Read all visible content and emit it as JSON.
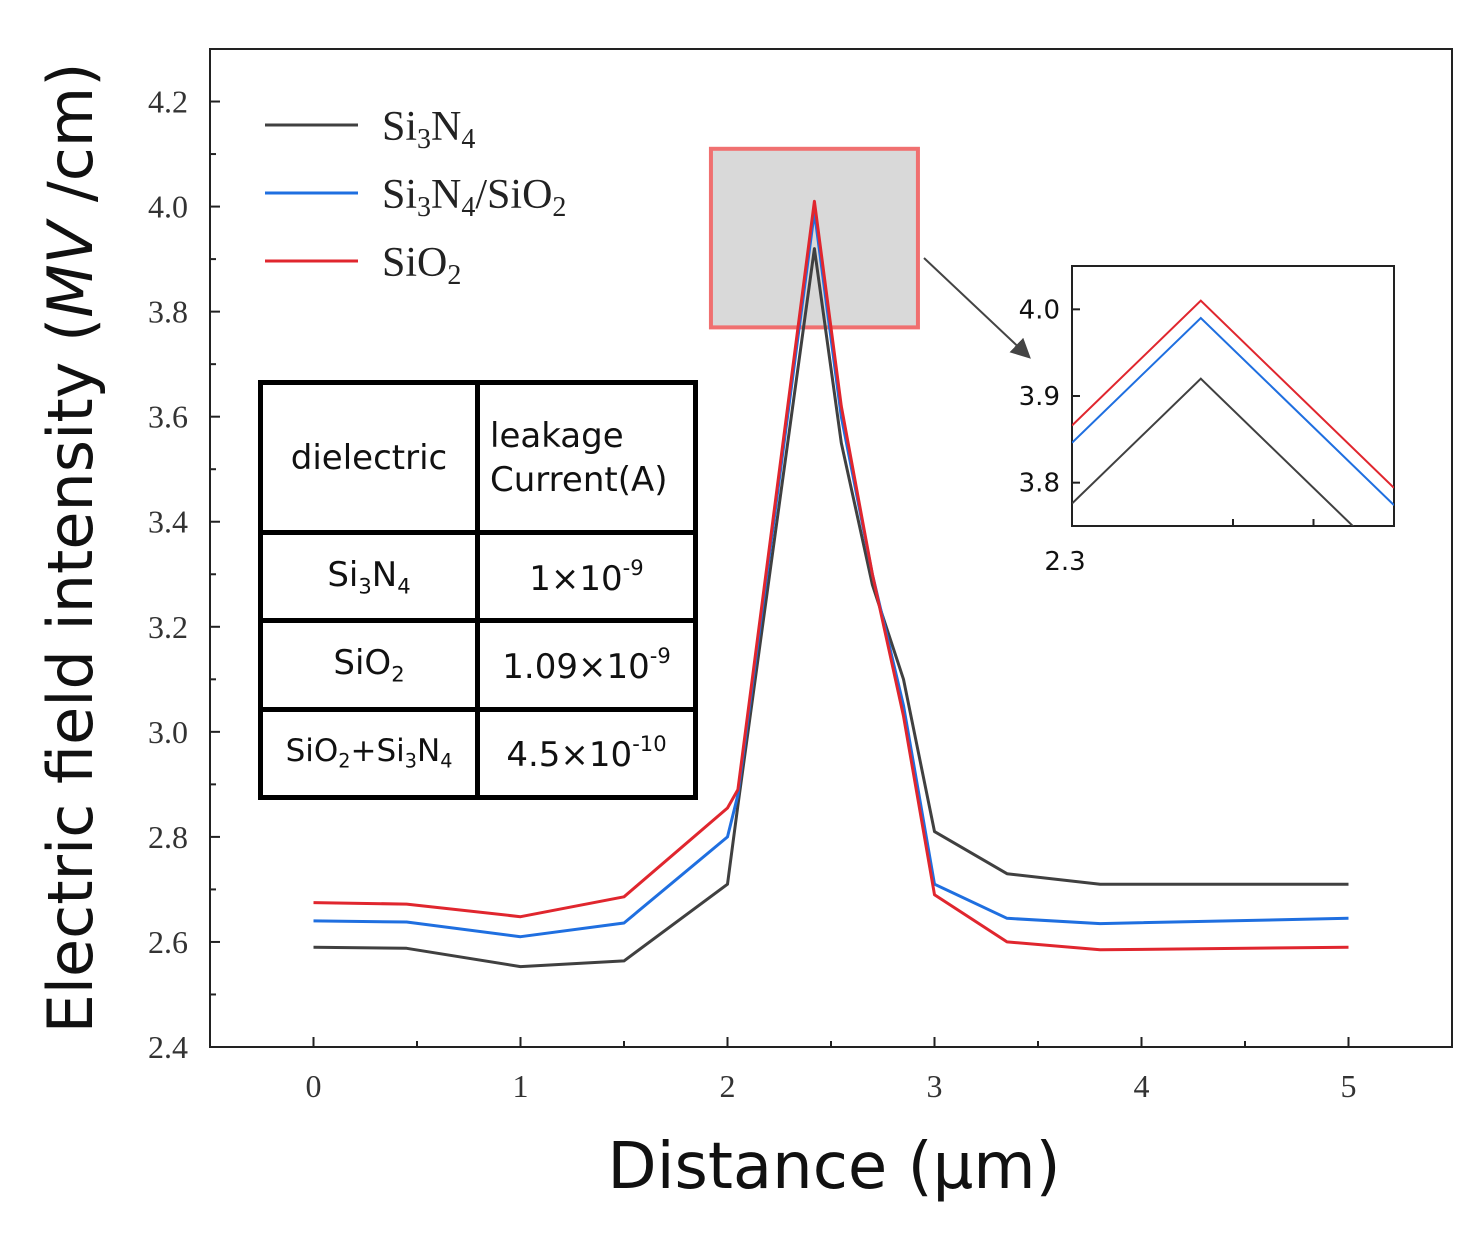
{
  "chart_data": {
    "type": "line",
    "title": "",
    "xlabel": "Distance (μm)",
    "ylabel_prefix": "Electric field intensity (",
    "ylabel_italic": "MV",
    "ylabel_suffix": " /cm)",
    "xlim": [
      -0.5,
      5.5
    ],
    "ylim": [
      2.4,
      4.3
    ],
    "xticks": [
      0,
      1,
      2,
      3,
      4,
      5
    ],
    "yticks": [
      2.4,
      2.6,
      2.8,
      3.0,
      3.2,
      3.4,
      3.6,
      3.8,
      4.0,
      4.2
    ],
    "ytick_labels": [
      "2.4",
      "2.6",
      "2.8",
      "3.0",
      "3.2",
      "3.4",
      "3.6",
      "3.8",
      "4.0",
      "4.2"
    ],
    "xtick_labels": [
      "0",
      "1",
      "2",
      "3",
      "4",
      "5"
    ],
    "legend_position": "top-left",
    "series": [
      {
        "name": "Si3N4",
        "label_base": "Si",
        "label_sub1": "3",
        "label_mid": "N",
        "label_sub2": "4",
        "label_tail": "",
        "label_sub3": "",
        "color": "#404040",
        "x": [
          0,
          0.45,
          1.0,
          1.5,
          2.0,
          2.05,
          2.42,
          2.55,
          2.7,
          2.85,
          3.0,
          3.35,
          3.8,
          5.0
        ],
        "y": [
          2.59,
          2.588,
          2.553,
          2.564,
          2.71,
          2.86,
          3.92,
          3.55,
          3.28,
          3.1,
          2.81,
          2.73,
          2.71,
          2.71
        ]
      },
      {
        "name": "Si3N4/SiO2",
        "label_base": "Si",
        "label_sub1": "3",
        "label_mid": "N",
        "label_sub2": "4",
        "label_tail": "/SiO",
        "label_sub3": "2",
        "color": "#1f6fe0",
        "x": [
          0,
          0.45,
          1.0,
          1.5,
          2.0,
          2.05,
          2.42,
          2.55,
          2.7,
          2.85,
          3.0,
          3.35,
          3.8,
          5.0
        ],
        "y": [
          2.64,
          2.638,
          2.61,
          2.636,
          2.8,
          2.88,
          3.99,
          3.6,
          3.3,
          3.05,
          2.71,
          2.645,
          2.635,
          2.645
        ]
      },
      {
        "name": "SiO2",
        "label_base": "SiO",
        "label_sub1": "2",
        "label_mid": "",
        "label_sub2": "",
        "label_tail": "",
        "label_sub3": "",
        "color": "#e0262e",
        "x": [
          0,
          0.45,
          1.0,
          1.5,
          2.0,
          2.05,
          2.42,
          2.55,
          2.7,
          2.85,
          3.0,
          3.35,
          3.8,
          5.0
        ],
        "y": [
          2.675,
          2.672,
          2.648,
          2.686,
          2.855,
          2.89,
          4.01,
          3.62,
          3.3,
          3.03,
          2.69,
          2.6,
          2.585,
          2.59
        ]
      }
    ],
    "highlight_box": {
      "x": [
        1.92,
        2.92
      ],
      "y": [
        3.77,
        4.11
      ],
      "border_color": "#f07070",
      "fill_color": "#d9d9d9"
    },
    "inset": {
      "xlim": [
        2.3,
        2.6
      ],
      "ylim": [
        3.75,
        4.05
      ],
      "yticks": [
        3.8,
        3.9,
        4.0
      ],
      "ytick_labels": [
        "3.8",
        "3.9",
        "4.0"
      ],
      "xtick_label": "2.3",
      "xtick_values": [
        2.3,
        2.45,
        2.525
      ],
      "peak_x": 2.42
    }
  },
  "table": {
    "header_col1": "dielectric",
    "header_col2_line1": "leakage",
    "header_col2_line2": "Current(A)",
    "rows": [
      {
        "name": "Si3N4",
        "n_base": "Si",
        "n_s1": "3",
        "n_mid": "N",
        "n_s2": "4",
        "n_mid2": "",
        "n_s3": "",
        "n_tail": "",
        "n_s4": "",
        "coef": "1×10",
        "exp": "-9"
      },
      {
        "name": "SiO2",
        "n_base": "SiO",
        "n_s1": "2",
        "n_mid": "",
        "n_s2": "",
        "n_mid2": "",
        "n_s3": "",
        "n_tail": "",
        "n_s4": "",
        "coef": "1.09×10",
        "exp": "-9"
      },
      {
        "name": "SiO2+Si3N4",
        "n_base": "SiO",
        "n_s1": "2",
        "n_mid": "+Si",
        "n_s2": "3",
        "n_mid2": "N",
        "n_s3": "4",
        "n_tail": "",
        "n_s4": "",
        "coef": "4.5×10",
        "exp": "-10"
      }
    ]
  }
}
